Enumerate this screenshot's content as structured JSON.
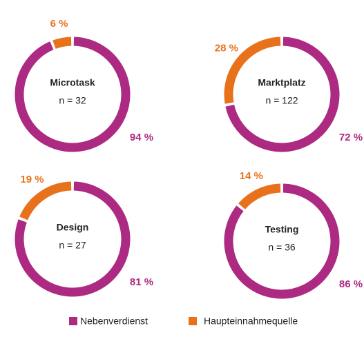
{
  "chart_data": [
    {
      "type": "donut",
      "title": "Microtask",
      "subtitle": "n = 32",
      "categories": [
        "Nebenverdienst",
        "Haupteinnahmequelle"
      ],
      "values": [
        94,
        6
      ],
      "value_labels": [
        "94 %",
        "6 %"
      ],
      "colors": [
        "#ad2a82",
        "#e8721c"
      ]
    },
    {
      "type": "donut",
      "title": "Marktplatz",
      "subtitle": "n = 122",
      "categories": [
        "Nebenverdienst",
        "Haupteinnahmequelle"
      ],
      "values": [
        72,
        28
      ],
      "value_labels": [
        "72 %",
        "28 %"
      ],
      "colors": [
        "#ad2a82",
        "#e8721c"
      ]
    },
    {
      "type": "donut",
      "title": "Design",
      "subtitle": "n = 27",
      "categories": [
        "Nebenverdienst",
        "Haupteinnahmequelle"
      ],
      "values": [
        81,
        19
      ],
      "value_labels": [
        "81 %",
        "19 %"
      ],
      "colors": [
        "#ad2a82",
        "#e8721c"
      ]
    },
    {
      "type": "donut",
      "title": "Testing",
      "subtitle": "n = 36",
      "categories": [
        "Nebenverdienst",
        "Haupteinnahmequelle"
      ],
      "values": [
        86,
        14
      ],
      "value_labels": [
        "86 %",
        "14 %"
      ],
      "colors": [
        "#ad2a82",
        "#e8721c"
      ]
    }
  ]
}
